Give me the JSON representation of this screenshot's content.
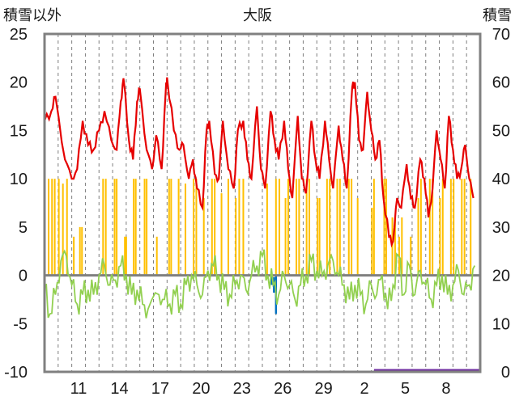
{
  "chart_data": {
    "type": "bar+line",
    "title": "大阪",
    "left_axis_label": "積雪以外",
    "right_axis_label": "積雪",
    "left_ylim": [
      -10,
      25
    ],
    "left_ticks": [
      "25",
      "20",
      "15",
      "10",
      "5",
      "0",
      "-5",
      "-10"
    ],
    "right_ylim": [
      0,
      70
    ],
    "right_ticks": [
      "70",
      "60",
      "50",
      "40",
      "30",
      "20",
      "10",
      "0"
    ],
    "x_days": 32,
    "x_tick_labels": [
      {
        "day": 2.5,
        "label": "11"
      },
      {
        "day": 5.5,
        "label": "14"
      },
      {
        "day": 8.5,
        "label": "17"
      },
      {
        "day": 11.5,
        "label": "20"
      },
      {
        "day": 14.5,
        "label": "23"
      },
      {
        "day": 17.5,
        "label": "26"
      },
      {
        "day": 20.5,
        "label": "29"
      },
      {
        "day": 23.5,
        "label": "2"
      },
      {
        "day": 26.5,
        "label": "5"
      },
      {
        "day": 29.5,
        "label": "8"
      }
    ],
    "grid": "vertical-dashed-daily",
    "colors": {
      "temperature": "#e60000",
      "dewpoint": "#92d050",
      "precip": "#ffc000",
      "snow": "#7030a0",
      "wind": "#0070c0",
      "frame": "#808080"
    },
    "temperature_peaks": [
      {
        "day": 0.0,
        "value": 16
      },
      {
        "day": 0.5,
        "value": 17
      },
      {
        "day": 0.8,
        "value": 18.5
      },
      {
        "day": 1.5,
        "value": 12
      },
      {
        "day": 2.0,
        "value": 10
      },
      {
        "day": 2.4,
        "value": 11
      },
      {
        "day": 2.8,
        "value": 16
      },
      {
        "day": 3.2,
        "value": 13.5
      },
      {
        "day": 3.6,
        "value": 13
      },
      {
        "day": 4.0,
        "value": 15
      },
      {
        "day": 4.4,
        "value": 17
      },
      {
        "day": 4.9,
        "value": 14
      },
      {
        "day": 5.3,
        "value": 13
      },
      {
        "day": 5.6,
        "value": 18
      },
      {
        "day": 5.8,
        "value": 20.4
      },
      {
        "day": 6.2,
        "value": 14
      },
      {
        "day": 6.5,
        "value": 12
      },
      {
        "day": 6.8,
        "value": 18
      },
      {
        "day": 7.0,
        "value": 19.3
      },
      {
        "day": 7.5,
        "value": 13
      },
      {
        "day": 7.9,
        "value": 11
      },
      {
        "day": 8.2,
        "value": 14.5
      },
      {
        "day": 8.6,
        "value": 11
      },
      {
        "day": 8.9,
        "value": 19
      },
      {
        "day": 9.0,
        "value": 20.5
      },
      {
        "day": 9.5,
        "value": 15
      },
      {
        "day": 9.9,
        "value": 13
      },
      {
        "day": 10.2,
        "value": 13.5
      },
      {
        "day": 10.6,
        "value": 10
      },
      {
        "day": 10.9,
        "value": 12
      },
      {
        "day": 11.2,
        "value": 9
      },
      {
        "day": 11.6,
        "value": 7
      },
      {
        "day": 11.9,
        "value": 15
      },
      {
        "day": 12.1,
        "value": 16
      },
      {
        "day": 12.5,
        "value": 10.5
      },
      {
        "day": 12.8,
        "value": 10
      },
      {
        "day": 13.1,
        "value": 16
      },
      {
        "day": 13.5,
        "value": 11
      },
      {
        "day": 13.9,
        "value": 9
      },
      {
        "day": 14.2,
        "value": 15
      },
      {
        "day": 14.6,
        "value": 16
      },
      {
        "day": 14.9,
        "value": 12
      },
      {
        "day": 15.2,
        "value": 10
      },
      {
        "day": 15.6,
        "value": 17.5
      },
      {
        "day": 15.9,
        "value": 11
      },
      {
        "day": 16.2,
        "value": 9
      },
      {
        "day": 16.6,
        "value": 17
      },
      {
        "day": 16.9,
        "value": 14
      },
      {
        "day": 17.2,
        "value": 12
      },
      {
        "day": 17.6,
        "value": 16
      },
      {
        "day": 17.9,
        "value": 11
      },
      {
        "day": 18.2,
        "value": 8
      },
      {
        "day": 18.6,
        "value": 16.5
      },
      {
        "day": 18.9,
        "value": 10
      },
      {
        "day": 19.2,
        "value": 8.5
      },
      {
        "day": 19.6,
        "value": 16
      },
      {
        "day": 19.9,
        "value": 12
      },
      {
        "day": 20.2,
        "value": 10
      },
      {
        "day": 20.6,
        "value": 16
      },
      {
        "day": 20.9,
        "value": 12
      },
      {
        "day": 21.2,
        "value": 9
      },
      {
        "day": 21.6,
        "value": 15.5
      },
      {
        "day": 21.9,
        "value": 12
      },
      {
        "day": 22.2,
        "value": 9
      },
      {
        "day": 22.6,
        "value": 19.5
      },
      {
        "day": 22.8,
        "value": 20
      },
      {
        "day": 23.1,
        "value": 14
      },
      {
        "day": 23.4,
        "value": 13
      },
      {
        "day": 23.7,
        "value": 19
      },
      {
        "day": 24.0,
        "value": 15
      },
      {
        "day": 24.3,
        "value": 12
      },
      {
        "day": 24.6,
        "value": 14
      },
      {
        "day": 24.9,
        "value": 8
      },
      {
        "day": 25.3,
        "value": 4
      },
      {
        "day": 25.6,
        "value": 3.5
      },
      {
        "day": 25.9,
        "value": 8
      },
      {
        "day": 26.2,
        "value": 7
      },
      {
        "day": 26.6,
        "value": 11.5
      },
      {
        "day": 26.9,
        "value": 8
      },
      {
        "day": 27.2,
        "value": 7
      },
      {
        "day": 27.6,
        "value": 12
      },
      {
        "day": 27.9,
        "value": 10
      },
      {
        "day": 28.2,
        "value": 6
      },
      {
        "day": 28.5,
        "value": 9
      },
      {
        "day": 28.8,
        "value": 15
      },
      {
        "day": 29.1,
        "value": 12
      },
      {
        "day": 29.4,
        "value": 9
      },
      {
        "day": 29.7,
        "value": 16.5
      },
      {
        "day": 30.0,
        "value": 13
      },
      {
        "day": 30.3,
        "value": 10
      },
      {
        "day": 30.6,
        "value": 11
      },
      {
        "day": 30.9,
        "value": 13.5
      },
      {
        "day": 31.2,
        "value": 10
      },
      {
        "day": 31.5,
        "value": 8
      }
    ],
    "dewpoint_points": [
      {
        "day": 0.0,
        "value": -1
      },
      {
        "day": 0.4,
        "value": -4
      },
      {
        "day": 0.8,
        "value": -2
      },
      {
        "day": 1.2,
        "value": 1.5
      },
      {
        "day": 1.6,
        "value": 2
      },
      {
        "day": 2.0,
        "value": -1
      },
      {
        "day": 2.4,
        "value": -3
      },
      {
        "day": 2.8,
        "value": -2
      },
      {
        "day": 3.2,
        "value": -1.5
      },
      {
        "day": 3.6,
        "value": -2
      },
      {
        "day": 4.0,
        "value": 0
      },
      {
        "day": 4.4,
        "value": 1
      },
      {
        "day": 4.8,
        "value": -1
      },
      {
        "day": 5.2,
        "value": -0.5
      },
      {
        "day": 5.6,
        "value": 1
      },
      {
        "day": 6.0,
        "value": 0
      },
      {
        "day": 6.4,
        "value": -2
      },
      {
        "day": 6.8,
        "value": -1.5
      },
      {
        "day": 7.2,
        "value": -3
      },
      {
        "day": 7.6,
        "value": -3.5
      },
      {
        "day": 8.4,
        "value": -2
      },
      {
        "day": 8.8,
        "value": -2.5
      },
      {
        "day": 9.2,
        "value": -3
      },
      {
        "day": 9.6,
        "value": -2
      },
      {
        "day": 10.0,
        "value": -3
      },
      {
        "day": 10.4,
        "value": -1
      },
      {
        "day": 10.8,
        "value": 0
      },
      {
        "day": 11.2,
        "value": -1
      },
      {
        "day": 11.6,
        "value": -2
      },
      {
        "day": 12.0,
        "value": 0.5
      },
      {
        "day": 12.4,
        "value": 1
      },
      {
        "day": 12.8,
        "value": 0
      },
      {
        "day": 13.2,
        "value": -1.5
      },
      {
        "day": 13.6,
        "value": -2
      },
      {
        "day": 14.0,
        "value": -1
      },
      {
        "day": 14.4,
        "value": 0
      },
      {
        "day": 14.8,
        "value": -1.5
      },
      {
        "day": 15.2,
        "value": 0
      },
      {
        "day": 15.6,
        "value": 1
      },
      {
        "day": 16.0,
        "value": 2
      },
      {
        "day": 16.4,
        "value": 0
      },
      {
        "day": 16.8,
        "value": -1
      },
      {
        "day": 17.2,
        "value": -2
      },
      {
        "day": 17.6,
        "value": 0
      },
      {
        "day": 18.0,
        "value": -1
      },
      {
        "day": 18.4,
        "value": -2.5
      },
      {
        "day": 18.8,
        "value": -1
      },
      {
        "day": 19.2,
        "value": 0
      },
      {
        "day": 19.6,
        "value": 1.5
      },
      {
        "day": 20.0,
        "value": 0.5
      },
      {
        "day": 20.4,
        "value": 0
      },
      {
        "day": 20.8,
        "value": 1
      },
      {
        "day": 21.2,
        "value": 1.5
      },
      {
        "day": 21.6,
        "value": 0
      },
      {
        "day": 22.0,
        "value": -1
      },
      {
        "day": 22.4,
        "value": -2.5
      },
      {
        "day": 22.8,
        "value": -1
      },
      {
        "day": 23.2,
        "value": -2
      },
      {
        "day": 23.6,
        "value": -3
      },
      {
        "day": 24.0,
        "value": -1
      },
      {
        "day": 24.4,
        "value": -2
      },
      {
        "day": 24.8,
        "value": 0
      },
      {
        "day": 25.2,
        "value": -3.5
      },
      {
        "day": 25.6,
        "value": -1
      },
      {
        "day": 26.0,
        "value": 2
      },
      {
        "day": 26.4,
        "value": -2
      },
      {
        "day": 26.8,
        "value": 1
      },
      {
        "day": 27.2,
        "value": -2
      },
      {
        "day": 27.6,
        "value": 0.5
      },
      {
        "day": 28.0,
        "value": -1
      },
      {
        "day": 28.4,
        "value": -2.5
      },
      {
        "day": 28.8,
        "value": -1
      },
      {
        "day": 29.2,
        "value": 0
      },
      {
        "day": 29.6,
        "value": -2
      },
      {
        "day": 30.0,
        "value": -1
      },
      {
        "day": 30.4,
        "value": 0.5
      },
      {
        "day": 30.8,
        "value": -2
      },
      {
        "day": 31.2,
        "value": -1
      },
      {
        "day": 31.6,
        "value": 1
      }
    ],
    "precip_bars": [
      {
        "day": 0.3,
        "value": 10
      },
      {
        "day": 0.55,
        "value": 10
      },
      {
        "day": 0.75,
        "value": 10
      },
      {
        "day": 1.05,
        "value": 10
      },
      {
        "day": 1.35,
        "value": 9.5
      },
      {
        "day": 1.65,
        "value": 10
      },
      {
        "day": 2.15,
        "value": 4
      },
      {
        "day": 2.6,
        "value": 5
      },
      {
        "day": 2.75,
        "value": 5
      },
      {
        "day": 4.3,
        "value": 10
      },
      {
        "day": 4.5,
        "value": 10
      },
      {
        "day": 5.15,
        "value": 10
      },
      {
        "day": 5.3,
        "value": 10
      },
      {
        "day": 5.9,
        "value": 4
      },
      {
        "day": 6.0,
        "value": 4
      },
      {
        "day": 6.55,
        "value": 10
      },
      {
        "day": 6.7,
        "value": 10
      },
      {
        "day": 7.35,
        "value": 10
      },
      {
        "day": 7.5,
        "value": 10
      },
      {
        "day": 8.25,
        "value": 4
      },
      {
        "day": 9.15,
        "value": 10
      },
      {
        "day": 9.3,
        "value": 10
      },
      {
        "day": 9.85,
        "value": 10
      },
      {
        "day": 10.35,
        "value": 9.5
      },
      {
        "day": 10.95,
        "value": 10
      },
      {
        "day": 11.15,
        "value": 10
      },
      {
        "day": 11.7,
        "value": 8
      },
      {
        "day": 12.3,
        "value": 10
      },
      {
        "day": 12.5,
        "value": 10
      },
      {
        "day": 13.0,
        "value": 8.5
      },
      {
        "day": 13.5,
        "value": 10
      },
      {
        "day": 14.05,
        "value": 8
      },
      {
        "day": 14.3,
        "value": 10
      },
      {
        "day": 14.6,
        "value": 10
      },
      {
        "day": 16.35,
        "value": 9.5
      },
      {
        "day": 17.0,
        "value": 10
      },
      {
        "day": 17.25,
        "value": 10
      },
      {
        "day": 17.7,
        "value": 8
      },
      {
        "day": 17.9,
        "value": 10
      },
      {
        "day": 18.5,
        "value": 10
      },
      {
        "day": 18.7,
        "value": 10
      },
      {
        "day": 19.25,
        "value": 10
      },
      {
        "day": 19.45,
        "value": 10
      },
      {
        "day": 20.05,
        "value": 8
      },
      {
        "day": 20.2,
        "value": 8
      },
      {
        "day": 20.75,
        "value": 10
      },
      {
        "day": 20.95,
        "value": 10
      },
      {
        "day": 21.5,
        "value": 10
      },
      {
        "day": 21.7,
        "value": 10
      },
      {
        "day": 22.35,
        "value": 10
      },
      {
        "day": 22.55,
        "value": 10
      },
      {
        "day": 23.0,
        "value": 8
      },
      {
        "day": 24.05,
        "value": 7
      },
      {
        "day": 24.2,
        "value": 10
      },
      {
        "day": 24.95,
        "value": 10
      },
      {
        "day": 25.1,
        "value": 10
      },
      {
        "day": 25.55,
        "value": 6
      },
      {
        "day": 25.75,
        "value": 6
      },
      {
        "day": 26.05,
        "value": 4
      },
      {
        "day": 26.25,
        "value": 6
      },
      {
        "day": 26.9,
        "value": 4
      },
      {
        "day": 27.45,
        "value": 8
      },
      {
        "day": 27.65,
        "value": 10
      },
      {
        "day": 28.3,
        "value": 10
      },
      {
        "day": 28.5,
        "value": 10
      },
      {
        "day": 29.05,
        "value": 8
      },
      {
        "day": 29.25,
        "value": 10
      },
      {
        "day": 29.85,
        "value": 10
      },
      {
        "day": 30.05,
        "value": 10
      },
      {
        "day": 30.65,
        "value": 10
      },
      {
        "day": 30.85,
        "value": 10
      },
      {
        "day": 31.3,
        "value": 10
      }
    ],
    "wind_bars": [
      {
        "day": 16.7,
        "from": 0,
        "to": -1
      },
      {
        "day": 16.85,
        "from": -0.2,
        "to": -1.8
      },
      {
        "day": 17.0,
        "from": 0,
        "to": -4
      }
    ],
    "snow_segments": [
      {
        "from": 24.2,
        "to": 32,
        "value": 0
      }
    ]
  }
}
